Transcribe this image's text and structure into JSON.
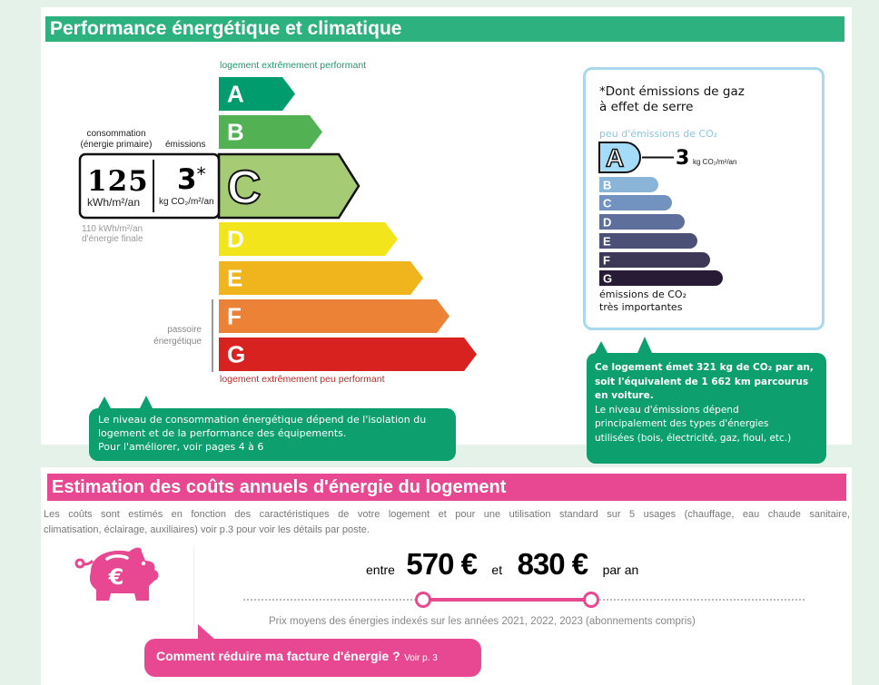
{
  "perf": {
    "title": "Performance énergétique et climatique",
    "top_label": "logement extrêmement performant",
    "bottom_label": "logement extrêmement peu performant",
    "classes": [
      {
        "letter": "A",
        "color": "#009c6d"
      },
      {
        "letter": "B",
        "color": "#52b153"
      },
      {
        "letter": "C",
        "color": "#a5cc74"
      },
      {
        "letter": "D",
        "color": "#f3e51b"
      },
      {
        "letter": "E",
        "color": "#f0b41c"
      },
      {
        "letter": "F",
        "color": "#eb8235"
      },
      {
        "letter": "G",
        "color": "#d7221f"
      }
    ],
    "current_class": "C",
    "consumption_label": "consommation",
    "consumption_sub": "(énergie primaire)",
    "emissions_label": "émissions",
    "consumption_value": "125",
    "consumption_unit": "kWh/m²/an",
    "emissions_value": "3",
    "emissions_star": "*",
    "emissions_unit": "kg CO₂/m²/an",
    "final_energy_1": "110 kWh/m²/an",
    "final_energy_2": "d'énergie finale",
    "passoire_1": "passoire",
    "passoire_2": "énergétique",
    "bubble": [
      "Le niveau de consommation énergétique dépend de l'isolation du",
      "logement et de la performance des équipements.",
      "Pour l'améliorer, voir pages 4 à 6"
    ]
  },
  "ges": {
    "title_1": "*Dont émissions de gaz",
    "title_2": "à effet de serre",
    "top_label": "peu d'émissions de CO₂",
    "current_class": "A",
    "value": "3",
    "unit": "kg CO₂/m²/an",
    "classes": [
      {
        "letter": "A",
        "color": "#a4dbf8"
      },
      {
        "letter": "B",
        "color": "#8ab5d8"
      },
      {
        "letter": "C",
        "color": "#7293bf"
      },
      {
        "letter": "D",
        "color": "#5e6f9b"
      },
      {
        "letter": "E",
        "color": "#4b5176"
      },
      {
        "letter": "F",
        "color": "#3c3856"
      },
      {
        "letter": "G",
        "color": "#281b35"
      }
    ],
    "bottom_label_1": "émissions de CO₂",
    "bottom_label_2": "très importantes",
    "bubble_bold": [
      "Ce logement émet 321 kg de CO₂ par an,",
      "soit l'équivalent de 1 662 km parcourus",
      "en voiture."
    ],
    "bubble": [
      "Le niveau d'émissions dépend",
      "principalement des types d'énergies",
      "utilisées (bois, électricité, gaz, fioul, etc.)"
    ]
  },
  "costs": {
    "title": "Estimation des coûts annuels d'énergie du logement",
    "intro_1": "Les coûts sont estimés en fonction des caractéristiques de votre logement et pour une utilisation standard sur 5 usages (chauffage, eau chaude sanitaire,",
    "intro_2": "climatisation, éclairage, auxiliaires) voir p.3 pour voir les détails par poste.",
    "between": "entre",
    "min": "570 €",
    "and": "et",
    "max": "830 €",
    "per_year": "par an",
    "note": "Prix moyens des énergies indexés sur les années 2021, 2022, 2023 (abonnements compris)",
    "cta": "Comment réduire ma facture d'énergie ?",
    "cta_ref": "Voir p. 3",
    "icon": "piggy-bank-euro-icon"
  },
  "colors": {
    "green": "#2db27f",
    "pink": "#e84891",
    "bubble_green": "#0e9f6e",
    "ges_border": "#a9d8ef"
  }
}
